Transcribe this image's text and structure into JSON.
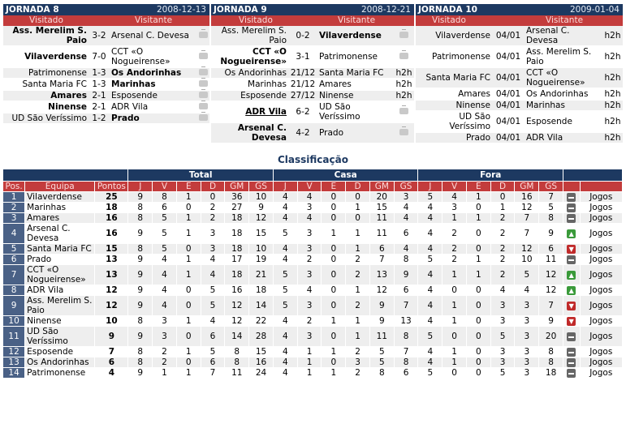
{
  "jornadas": [
    {
      "title": "JORNADA 8",
      "date": "2008-12-13",
      "visited_label": "Visitado",
      "visitor_label": "Visitante",
      "games": [
        {
          "home": "Ass. Merelim S. Paio",
          "score": "3-2",
          "away": "Arsenal C. Devesa",
          "extra": "tv",
          "hb": true,
          "ab": false
        },
        {
          "home": "Vilaverdense",
          "score": "7-0",
          "away": "CCT «O Nogueirense»",
          "extra": "tv",
          "hb": true,
          "ab": false
        },
        {
          "home": "Patrimonense",
          "score": "1-3",
          "away": "Os Andorinhas",
          "extra": "tv",
          "hb": false,
          "ab": true
        },
        {
          "home": "Santa Maria FC",
          "score": "1-3",
          "away": "Marinhas",
          "extra": "tv",
          "hb": false,
          "ab": true
        },
        {
          "home": "Amares",
          "score": "2-1",
          "away": "Esposende",
          "extra": "tv",
          "hb": true,
          "ab": false
        },
        {
          "home": "Ninense",
          "score": "2-1",
          "away": "ADR Vila",
          "extra": "tv",
          "hb": true,
          "ab": false
        },
        {
          "home": "UD São Veríssimo",
          "score": "1-2",
          "away": "Prado",
          "extra": "tv",
          "hb": false,
          "ab": true
        }
      ]
    },
    {
      "title": "JORNADA 9",
      "date": "2008-12-21",
      "visited_label": "Visitado",
      "visitor_label": "Visitante",
      "games": [
        {
          "home": "Ass. Merelim S. Paio",
          "score": "0-2",
          "away": "Vilaverdense",
          "extra": "tv",
          "hb": false,
          "ab": true
        },
        {
          "home": "CCT «O Nogueirense»",
          "score": "3-1",
          "away": "Patrimonense",
          "extra": "tv",
          "hb": true,
          "ab": false
        },
        {
          "home": "Os Andorinhas",
          "score": "21/12",
          "away": "Santa Maria FC",
          "extra": "h2h",
          "hb": false,
          "ab": false
        },
        {
          "home": "Marinhas",
          "score": "21/12",
          "away": "Amares",
          "extra": "h2h",
          "hb": false,
          "ab": false
        },
        {
          "home": "Esposende",
          "score": "27/12",
          "away": "Ninense",
          "extra": "h2h",
          "hb": false,
          "ab": false
        },
        {
          "home": "ADR Vila",
          "score": "6-2",
          "away": "UD São Veríssimo",
          "extra": "tv",
          "hb": true,
          "ab": false,
          "hu": true
        },
        {
          "home": "Arsenal C. Devesa",
          "score": "4-2",
          "away": "Prado",
          "extra": "tv",
          "hb": true,
          "ab": false
        }
      ]
    },
    {
      "title": "JORNADA 10",
      "date": "2009-01-04",
      "visited_label": "Visitado",
      "visitor_label": "Visitante",
      "games": [
        {
          "home": "Vilaverdense",
          "score": "04/01",
          "away": "Arsenal C. Devesa",
          "extra": "h2h",
          "hb": false,
          "ab": false
        },
        {
          "home": "Patrimonense",
          "score": "04/01",
          "away": "Ass. Merelim S. Paio",
          "extra": "h2h",
          "hb": false,
          "ab": false
        },
        {
          "home": "Santa Maria FC",
          "score": "04/01",
          "away": "CCT «O Nogueirense»",
          "extra": "h2h",
          "hb": false,
          "ab": false
        },
        {
          "home": "Amares",
          "score": "04/01",
          "away": "Os Andorinhas",
          "extra": "h2h",
          "hb": false,
          "ab": false
        },
        {
          "home": "Ninense",
          "score": "04/01",
          "away": "Marinhas",
          "extra": "h2h",
          "hb": false,
          "ab": false
        },
        {
          "home": "UD São Veríssimo",
          "score": "04/01",
          "away": "Esposende",
          "extra": "h2h",
          "hb": false,
          "ab": false
        },
        {
          "home": "Prado",
          "score": "04/01",
          "away": "ADR Vila",
          "extra": "h2h",
          "hb": false,
          "ab": false
        }
      ]
    }
  ],
  "classification": {
    "title": "Classificação",
    "group_total": "Total",
    "group_casa": "Casa",
    "group_fora": "Fora",
    "col_pos": "Pos.",
    "col_team": "Equipa",
    "col_points": "Pontos",
    "sub_cols": [
      "J",
      "V",
      "E",
      "D",
      "GM",
      "GS"
    ],
    "games_link": "Jogos",
    "rows": [
      {
        "pos": "1",
        "team": "Vilaverdense",
        "pts": "25",
        "t": [
          "9",
          "8",
          "1",
          "0",
          "36",
          "10"
        ],
        "c": [
          "4",
          "4",
          "0",
          "0",
          "20",
          "3"
        ],
        "f": [
          "5",
          "4",
          "1",
          "0",
          "16",
          "7"
        ],
        "trend": "eq"
      },
      {
        "pos": "2",
        "team": "Marinhas",
        "pts": "18",
        "t": [
          "8",
          "6",
          "0",
          "2",
          "27",
          "9"
        ],
        "c": [
          "4",
          "3",
          "0",
          "1",
          "15",
          "4"
        ],
        "f": [
          "4",
          "3",
          "0",
          "1",
          "12",
          "5"
        ],
        "trend": "eq"
      },
      {
        "pos": "3",
        "team": "Amares",
        "pts": "16",
        "t": [
          "8",
          "5",
          "1",
          "2",
          "18",
          "12"
        ],
        "c": [
          "4",
          "4",
          "0",
          "0",
          "11",
          "4"
        ],
        "f": [
          "4",
          "1",
          "1",
          "2",
          "7",
          "8"
        ],
        "trend": "eq"
      },
      {
        "pos": "4",
        "team": "Arsenal C. Devesa",
        "pts": "16",
        "t": [
          "9",
          "5",
          "1",
          "3",
          "18",
          "15"
        ],
        "c": [
          "5",
          "3",
          "1",
          "1",
          "11",
          "6"
        ],
        "f": [
          "4",
          "2",
          "0",
          "2",
          "7",
          "9"
        ],
        "trend": "up"
      },
      {
        "pos": "5",
        "team": "Santa Maria FC",
        "pts": "15",
        "t": [
          "8",
          "5",
          "0",
          "3",
          "18",
          "10"
        ],
        "c": [
          "4",
          "3",
          "0",
          "1",
          "6",
          "4"
        ],
        "f": [
          "4",
          "2",
          "0",
          "2",
          "12",
          "6"
        ],
        "trend": "down"
      },
      {
        "pos": "6",
        "team": "Prado",
        "pts": "13",
        "t": [
          "9",
          "4",
          "1",
          "4",
          "17",
          "19"
        ],
        "c": [
          "4",
          "2",
          "0",
          "2",
          "7",
          "8"
        ],
        "f": [
          "5",
          "2",
          "1",
          "2",
          "10",
          "11"
        ],
        "trend": "eq"
      },
      {
        "pos": "7",
        "team": "CCT «O Nogueirense»",
        "pts": "13",
        "t": [
          "9",
          "4",
          "1",
          "4",
          "18",
          "21"
        ],
        "c": [
          "5",
          "3",
          "0",
          "2",
          "13",
          "9"
        ],
        "f": [
          "4",
          "1",
          "1",
          "2",
          "5",
          "12"
        ],
        "trend": "up"
      },
      {
        "pos": "8",
        "team": "ADR Vila",
        "pts": "12",
        "t": [
          "9",
          "4",
          "0",
          "5",
          "16",
          "18"
        ],
        "c": [
          "5",
          "4",
          "0",
          "1",
          "12",
          "6"
        ],
        "f": [
          "4",
          "0",
          "0",
          "4",
          "4",
          "12"
        ],
        "trend": "up"
      },
      {
        "pos": "9",
        "team": "Ass. Merelim S. Paio",
        "pts": "12",
        "t": [
          "9",
          "4",
          "0",
          "5",
          "12",
          "14"
        ],
        "c": [
          "5",
          "3",
          "0",
          "2",
          "9",
          "7"
        ],
        "f": [
          "4",
          "1",
          "0",
          "3",
          "3",
          "7"
        ],
        "trend": "down"
      },
      {
        "pos": "10",
        "team": "Ninense",
        "pts": "10",
        "t": [
          "8",
          "3",
          "1",
          "4",
          "12",
          "22"
        ],
        "c": [
          "4",
          "2",
          "1",
          "1",
          "9",
          "13"
        ],
        "f": [
          "4",
          "1",
          "0",
          "3",
          "3",
          "9"
        ],
        "trend": "down"
      },
      {
        "pos": "11",
        "team": "UD São Veríssimo",
        "pts": "9",
        "t": [
          "9",
          "3",
          "0",
          "6",
          "14",
          "28"
        ],
        "c": [
          "4",
          "3",
          "0",
          "1",
          "11",
          "8"
        ],
        "f": [
          "5",
          "0",
          "0",
          "5",
          "3",
          "20"
        ],
        "trend": "eq"
      },
      {
        "pos": "12",
        "team": "Esposende",
        "pts": "7",
        "t": [
          "8",
          "2",
          "1",
          "5",
          "8",
          "15"
        ],
        "c": [
          "4",
          "1",
          "1",
          "2",
          "5",
          "7"
        ],
        "f": [
          "4",
          "1",
          "0",
          "3",
          "3",
          "8"
        ],
        "trend": "eq"
      },
      {
        "pos": "13",
        "team": "Os Andorinhas",
        "pts": "6",
        "t": [
          "8",
          "2",
          "0",
          "6",
          "8",
          "16"
        ],
        "c": [
          "4",
          "1",
          "0",
          "3",
          "5",
          "8"
        ],
        "f": [
          "4",
          "1",
          "0",
          "3",
          "3",
          "8"
        ],
        "trend": "eq"
      },
      {
        "pos": "14",
        "team": "Patrimonense",
        "pts": "4",
        "t": [
          "9",
          "1",
          "1",
          "7",
          "11",
          "24"
        ],
        "c": [
          "4",
          "1",
          "1",
          "2",
          "8",
          "6"
        ],
        "f": [
          "5",
          "0",
          "0",
          "5",
          "3",
          "18"
        ],
        "trend": "eq"
      }
    ]
  },
  "icons": {
    "tv": "tv-icon",
    "eq": "equal-trend-icon",
    "up": "up-arrow-icon",
    "down": "down-arrow-icon"
  },
  "colors": {
    "header_bg": "#1d3961",
    "subheader_bg": "#c33c3c",
    "row_alt": "#eeeeee",
    "pos_bg": "#4a6186",
    "up": "#3a9a3a",
    "down": "#c02a2a"
  }
}
